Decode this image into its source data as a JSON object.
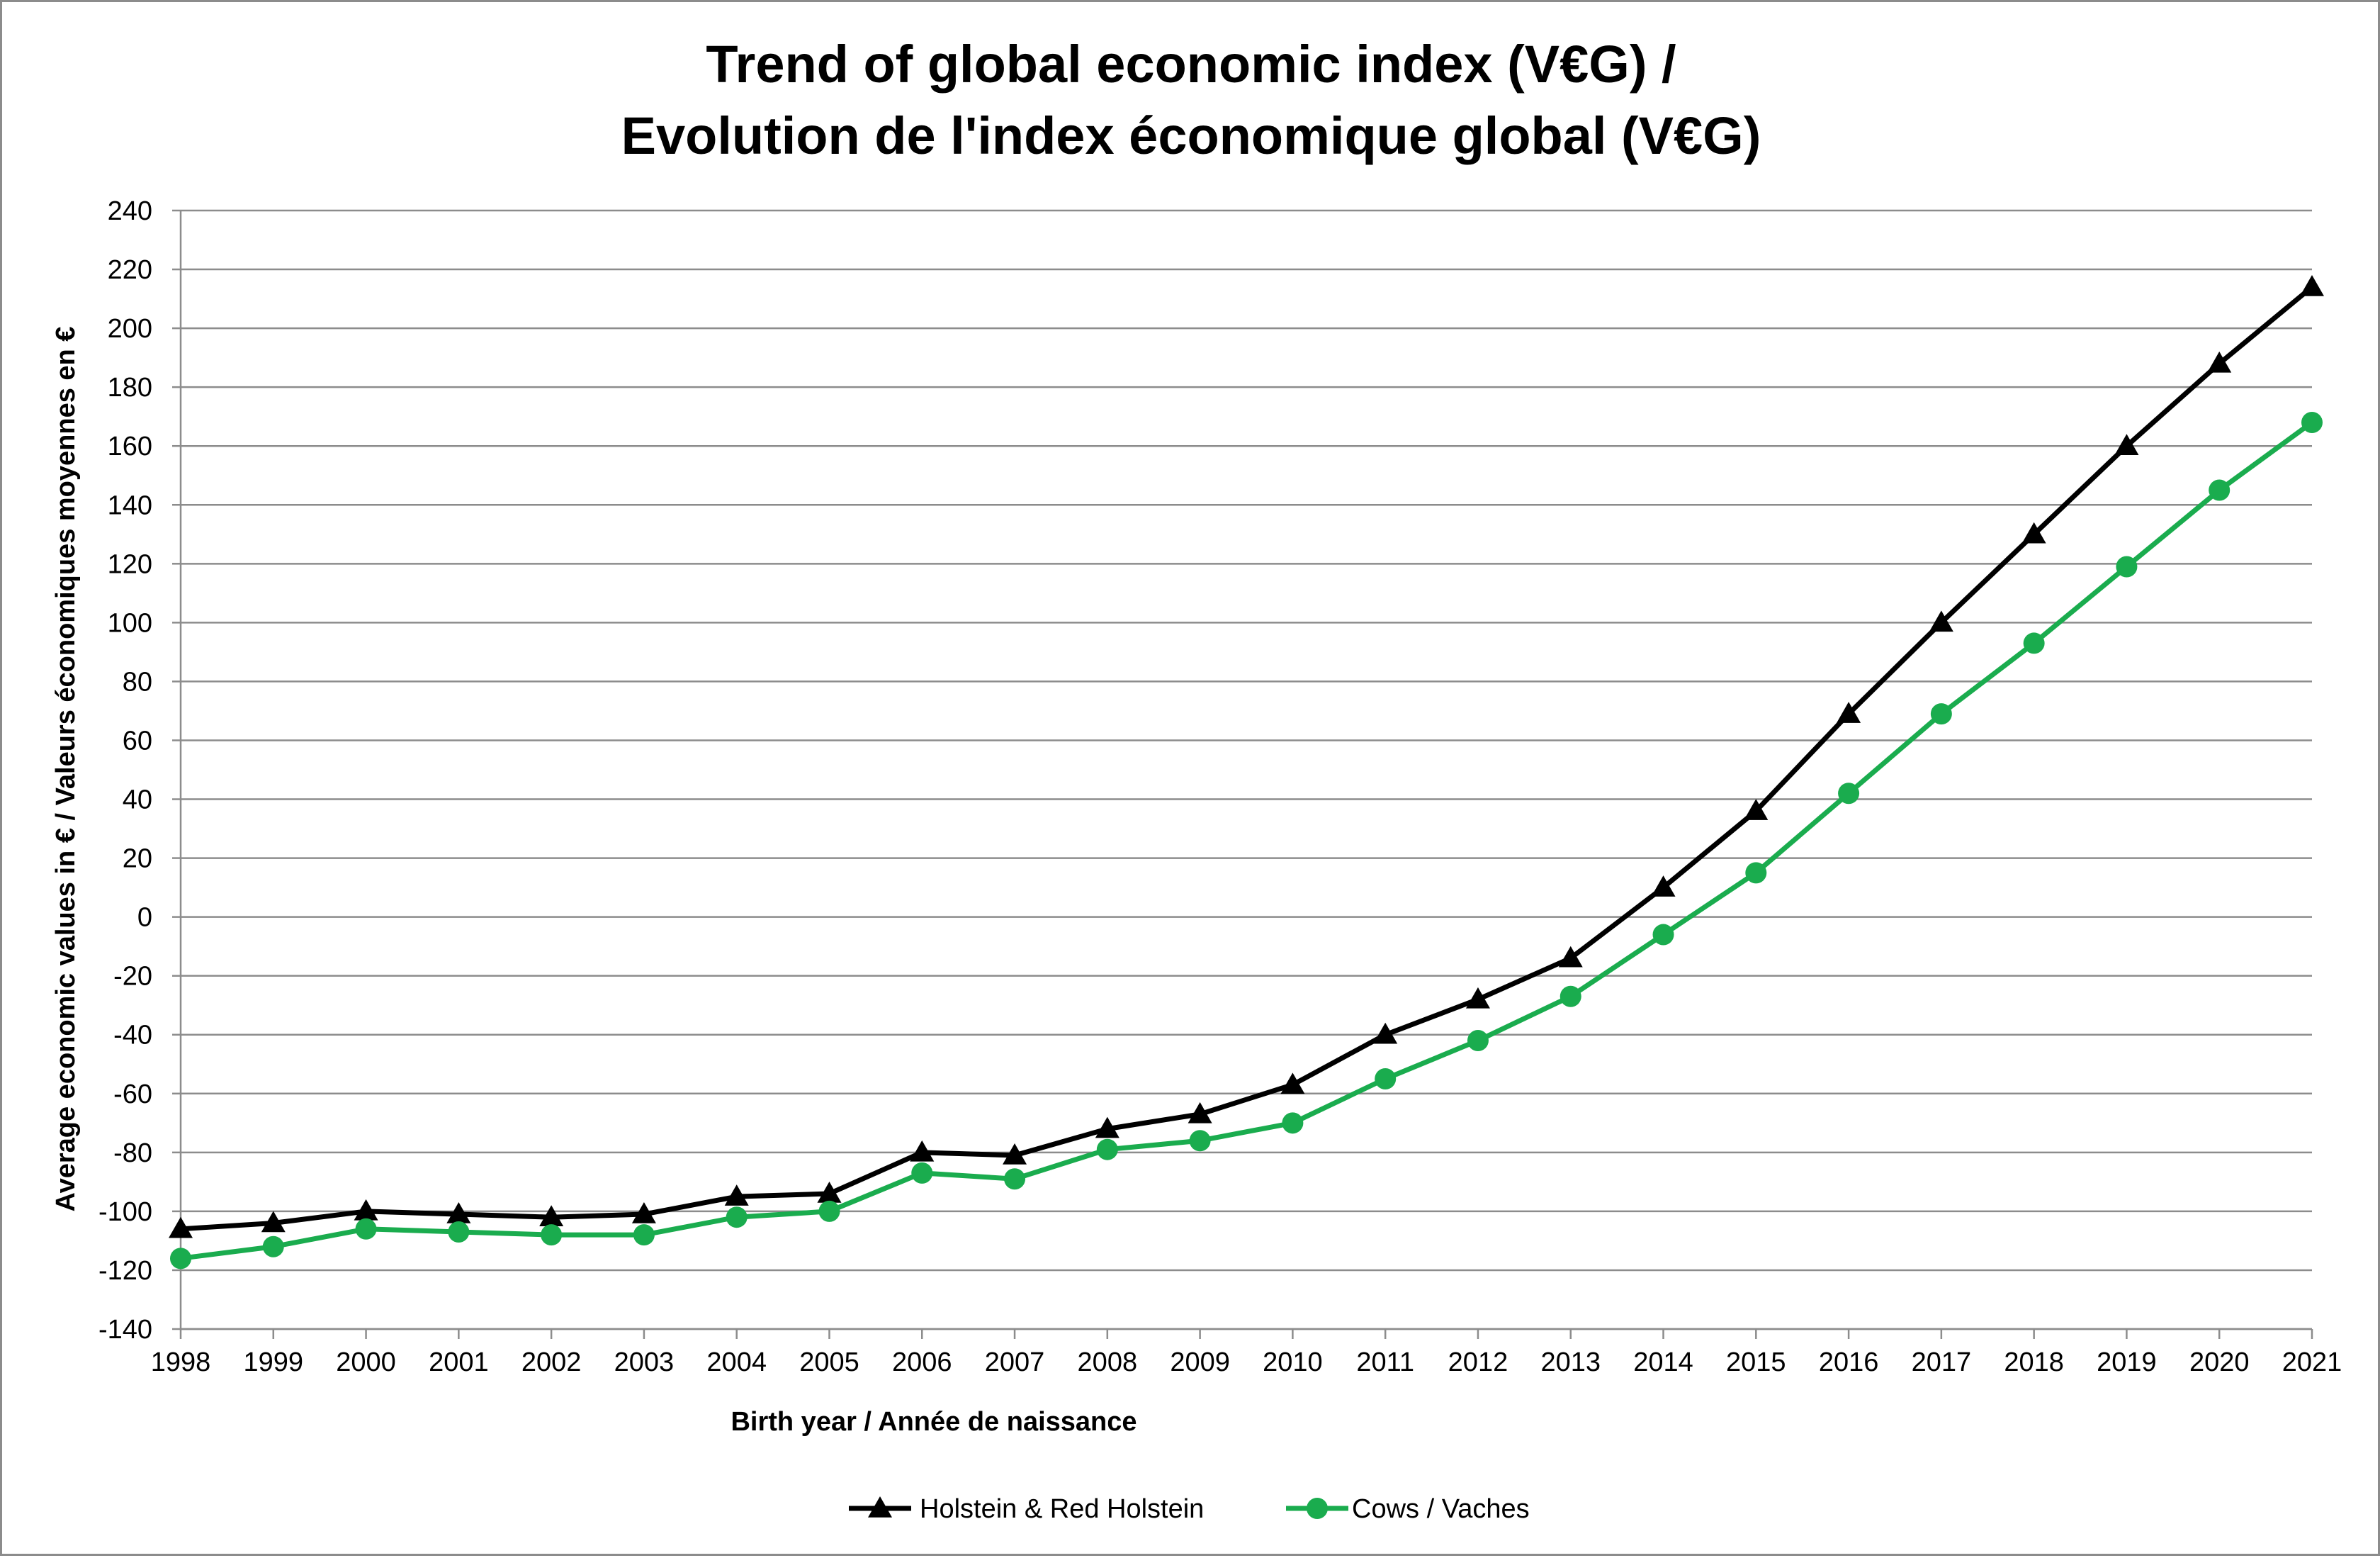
{
  "chart_data": {
    "type": "line",
    "title_line1": "Trend of global economic index (V€G) /",
    "title_line2": "Evolution de l'index économique global (V€G)",
    "xlabel": "Birth year / Année de naissance",
    "ylabel": "Average economic values in € / Valeurs économiques moyennes en €",
    "ylim": [
      -140,
      240
    ],
    "yticks": [
      -140,
      -120,
      -100,
      -80,
      -60,
      -40,
      -20,
      0,
      20,
      40,
      60,
      80,
      100,
      120,
      140,
      160,
      180,
      200,
      220,
      240
    ],
    "grid": true,
    "legend_position": "bottom",
    "categories": [
      "1998",
      "1999",
      "2000",
      "2001",
      "2002",
      "2003",
      "2004",
      "2005",
      "2006",
      "2007",
      "2008",
      "2009",
      "2010",
      "2011",
      "2012",
      "2013",
      "2014",
      "2015",
      "2016",
      "2017",
      "2018",
      "2019",
      "2020",
      "2021"
    ],
    "series": [
      {
        "name": "Holstein & Red Holstein",
        "color": "#000000",
        "marker": "triangle",
        "values": [
          -106,
          -104,
          -100,
          -101,
          -102,
          -101,
          -95,
          -94,
          -80,
          -81,
          -72,
          -67,
          -57,
          -40,
          -28,
          -14,
          10,
          36,
          69,
          100,
          130,
          160,
          188,
          214
        ]
      },
      {
        "name": "Cows / Vaches",
        "color": "#1aac4e",
        "marker": "circle",
        "values": [
          -116,
          -112,
          -106,
          -107,
          -108,
          -108,
          -102,
          -100,
          -87,
          -89,
          -79,
          -76,
          -70,
          -55,
          -42,
          -27,
          -6,
          15,
          42,
          69,
          93,
          119,
          145,
          168
        ]
      }
    ]
  }
}
